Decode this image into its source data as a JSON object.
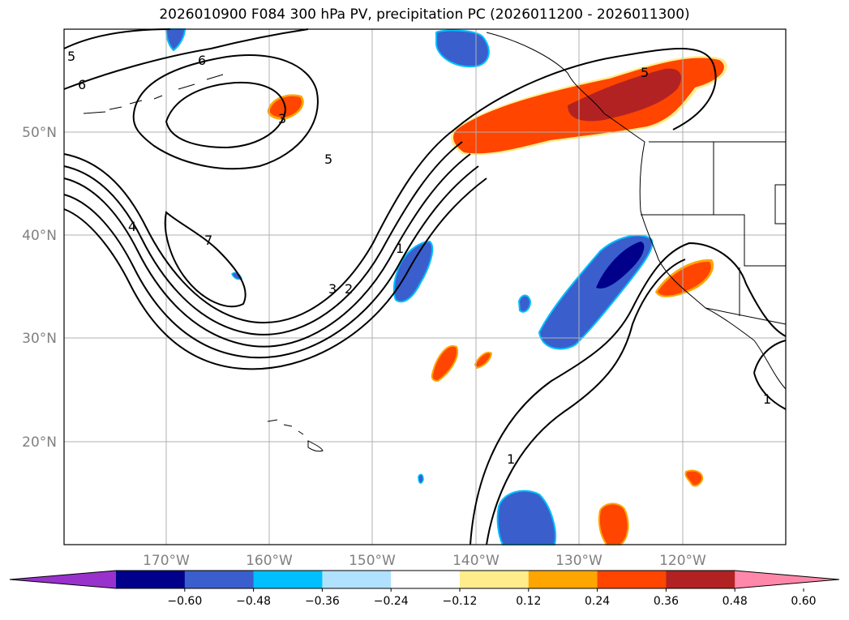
{
  "title": "2026010900 F084 300 hPa PV, precipitation PC (2026011200 - 2026011300)",
  "map": {
    "lat_labels": [
      "50°N",
      "40°N",
      "30°N",
      "20°N"
    ],
    "lon_labels": [
      "170°W",
      "160°W",
      "150°W",
      "140°W",
      "130°W",
      "120°W"
    ],
    "contour_labels": [
      "5",
      "6",
      "6",
      "3",
      "5",
      "4",
      "7",
      "3",
      "2",
      "1",
      "1",
      "1",
      "5"
    ]
  },
  "colorbar": {
    "ticks": [
      "−0.60",
      "−0.48",
      "−0.36",
      "−0.24",
      "−0.12",
      "0.12",
      "0.24",
      "0.36",
      "0.48",
      "0.60"
    ],
    "colors": [
      "#9932CC",
      "#00008B",
      "#3A5FCD",
      "#00BFFF",
      "#B0E2FF",
      "#FFFFFF",
      "#FFEC8B",
      "#FFA500",
      "#FF4500",
      "#B22222",
      "#FF88AA"
    ]
  }
}
